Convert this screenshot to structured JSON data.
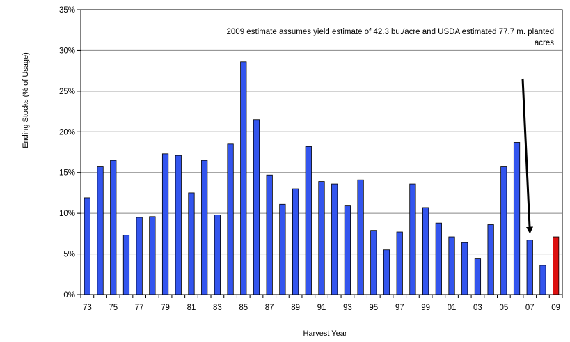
{
  "chart_data": {
    "type": "bar",
    "title": "",
    "xlabel": "Harvest Year",
    "ylabel": "Ending Stocks  (% of Usage)",
    "ylim": [
      0,
      35
    ],
    "yticks": [
      0,
      5,
      10,
      15,
      20,
      25,
      30,
      35
    ],
    "ytick_labels": [
      "0%",
      "5%",
      "10%",
      "15%",
      "20%",
      "25%",
      "30%",
      "35%"
    ],
    "grid": true,
    "categories": [
      "73",
      "74",
      "75",
      "76",
      "77",
      "78",
      "79",
      "80",
      "81",
      "82",
      "83",
      "84",
      "85",
      "86",
      "87",
      "88",
      "89",
      "90",
      "91",
      "92",
      "93",
      "94",
      "95",
      "96",
      "97",
      "98",
      "99",
      "00",
      "01",
      "02",
      "03",
      "04",
      "05",
      "06",
      "07",
      "08",
      "09"
    ],
    "xtick_labels_shown": [
      "73",
      "75",
      "77",
      "79",
      "81",
      "83",
      "85",
      "87",
      "89",
      "91",
      "93",
      "95",
      "97",
      "99",
      "01",
      "03",
      "05",
      "07",
      "09"
    ],
    "series": [
      {
        "values": [
          11.9,
          15.7,
          16.5,
          7.3,
          9.5,
          9.6,
          17.3,
          17.1,
          12.5,
          16.5,
          9.8,
          18.5,
          28.6,
          21.5,
          14.7,
          11.1,
          13.0,
          18.2,
          13.9,
          13.6,
          10.9,
          14.1,
          7.9,
          5.5,
          7.7,
          13.6,
          10.7,
          8.8,
          7.1,
          6.4,
          4.4,
          8.6,
          15.7,
          18.7,
          6.7,
          3.6,
          7.1
        ]
      }
    ],
    "colors": {
      "bar": "#3355ee",
      "highlight_bar": "#dd1111",
      "highlight_category": "09",
      "grid": "#888888",
      "axis": "#000000"
    },
    "annotation": {
      "text_line1": "2009 estimate assumes yield estimate of 42.3 bu./acre and USDA estimated 77.7 m. planted",
      "text_line2": "acres",
      "arrow_target_category": "07"
    }
  }
}
